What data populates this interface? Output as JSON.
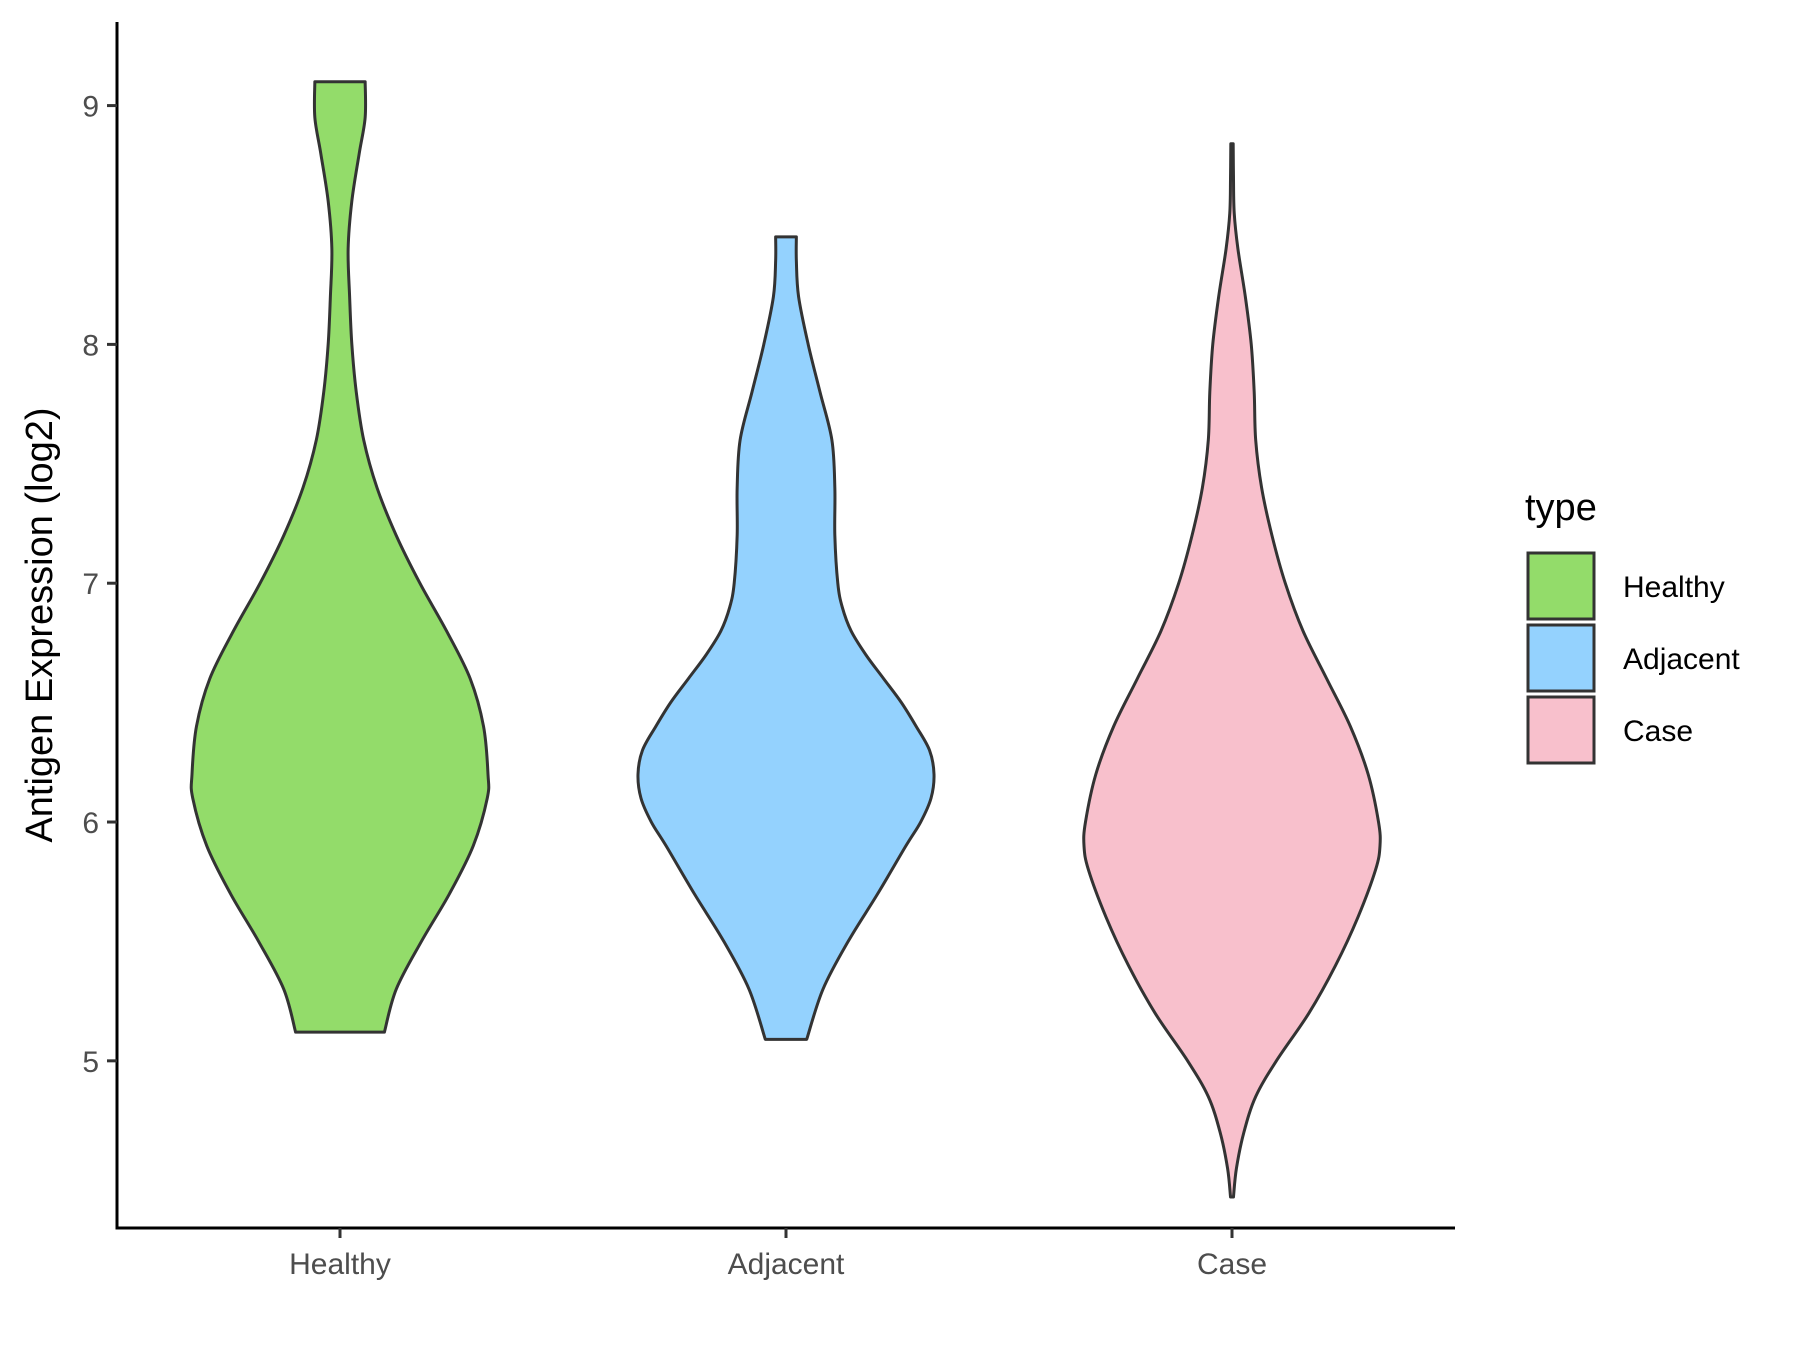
{
  "chart_data": {
    "type": "violin",
    "title": "",
    "xlabel": "",
    "ylabel": "Antigen Expression (log2)",
    "ylim": [
      4.3,
      9.35
    ],
    "yticks": [
      5,
      6,
      7,
      8,
      9
    ],
    "categories": [
      "Healthy",
      "Adjacent",
      "Case"
    ],
    "grid": false,
    "legend": {
      "title": "type",
      "position": "right",
      "entries": [
        "Healthy",
        "Adjacent",
        "Case"
      ]
    },
    "colors": {
      "Healthy": "#93dc6a",
      "Adjacent": "#94d2fe",
      "Case": "#f8c0cc",
      "outline": "#333333"
    },
    "series": [
      {
        "name": "Healthy",
        "min": 5.12,
        "max": 9.1,
        "density": [
          [
            5.12,
            0.3
          ],
          [
            5.3,
            0.38
          ],
          [
            5.5,
            0.55
          ],
          [
            5.7,
            0.74
          ],
          [
            5.9,
            0.9
          ],
          [
            6.1,
            0.995
          ],
          [
            6.2,
            1.0
          ],
          [
            6.4,
            0.97
          ],
          [
            6.6,
            0.88
          ],
          [
            6.8,
            0.72
          ],
          [
            7.0,
            0.54
          ],
          [
            7.2,
            0.38
          ],
          [
            7.4,
            0.25
          ],
          [
            7.6,
            0.16
          ],
          [
            7.8,
            0.11
          ],
          [
            8.0,
            0.08
          ],
          [
            8.2,
            0.065
          ],
          [
            8.4,
            0.055
          ],
          [
            8.6,
            0.08
          ],
          [
            8.8,
            0.13
          ],
          [
            8.95,
            0.17
          ],
          [
            9.1,
            0.17
          ]
        ]
      },
      {
        "name": "Adjacent",
        "min": 5.09,
        "max": 8.45,
        "density": [
          [
            5.09,
            0.14
          ],
          [
            5.3,
            0.25
          ],
          [
            5.5,
            0.42
          ],
          [
            5.7,
            0.62
          ],
          [
            5.9,
            0.81
          ],
          [
            6.0,
            0.91
          ],
          [
            6.1,
            0.98
          ],
          [
            6.2,
            1.0
          ],
          [
            6.3,
            0.97
          ],
          [
            6.4,
            0.88
          ],
          [
            6.5,
            0.78
          ],
          [
            6.6,
            0.66
          ],
          [
            6.7,
            0.54
          ],
          [
            6.8,
            0.44
          ],
          [
            6.9,
            0.38
          ],
          [
            7.0,
            0.35
          ],
          [
            7.2,
            0.33
          ],
          [
            7.4,
            0.33
          ],
          [
            7.6,
            0.31
          ],
          [
            7.8,
            0.23
          ],
          [
            8.0,
            0.15
          ],
          [
            8.2,
            0.085
          ],
          [
            8.35,
            0.07
          ],
          [
            8.45,
            0.07
          ]
        ]
      },
      {
        "name": "Case",
        "min": 4.43,
        "max": 8.84,
        "density": [
          [
            4.43,
            0.01
          ],
          [
            4.55,
            0.03
          ],
          [
            4.7,
            0.08
          ],
          [
            4.85,
            0.16
          ],
          [
            5.0,
            0.3
          ],
          [
            5.2,
            0.52
          ],
          [
            5.4,
            0.7
          ],
          [
            5.6,
            0.85
          ],
          [
            5.8,
            0.97
          ],
          [
            5.9,
            1.0
          ],
          [
            6.0,
            0.99
          ],
          [
            6.2,
            0.92
          ],
          [
            6.4,
            0.8
          ],
          [
            6.6,
            0.64
          ],
          [
            6.8,
            0.48
          ],
          [
            7.0,
            0.36
          ],
          [
            7.2,
            0.27
          ],
          [
            7.4,
            0.2
          ],
          [
            7.6,
            0.16
          ],
          [
            7.8,
            0.15
          ],
          [
            8.0,
            0.13
          ],
          [
            8.2,
            0.09
          ],
          [
            8.4,
            0.04
          ],
          [
            8.55,
            0.015
          ],
          [
            8.7,
            0.01
          ],
          [
            8.84,
            0.008
          ]
        ]
      }
    ]
  }
}
